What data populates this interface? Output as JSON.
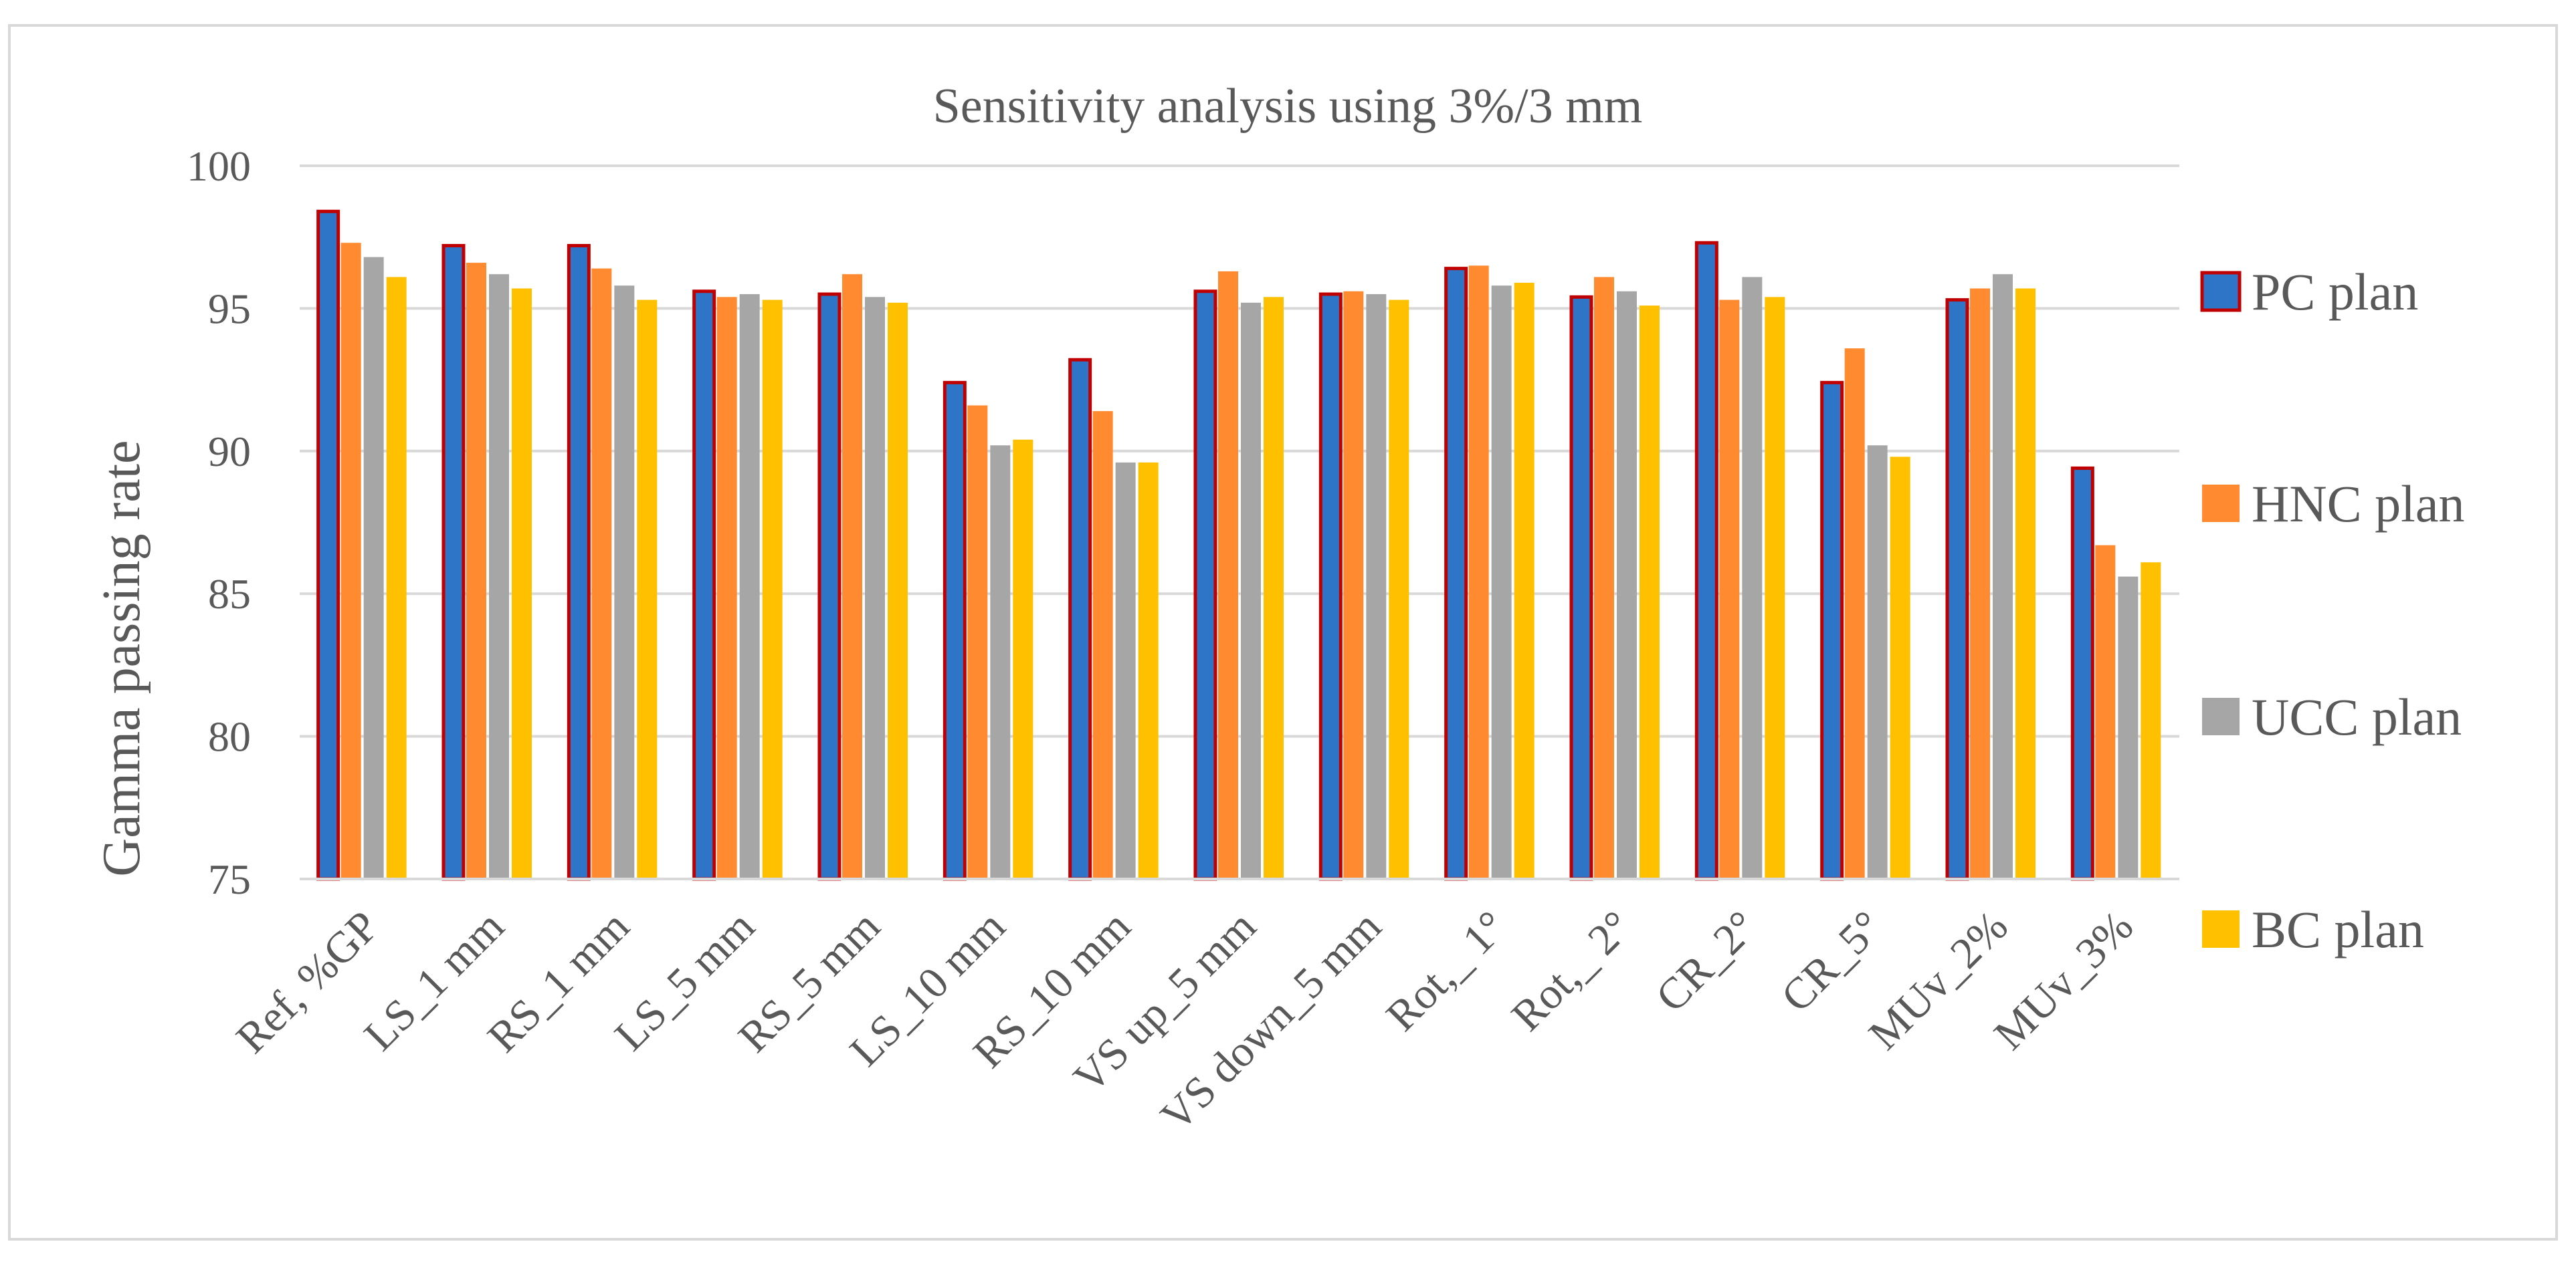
{
  "chart_data": {
    "type": "bar",
    "title": "Sensitivity analysis using 3%/3 mm",
    "xlabel": "",
    "ylabel": "Gamma passing rate",
    "ylim": [
      75,
      100
    ],
    "yticks": [
      75,
      80,
      85,
      90,
      95,
      100
    ],
    "grid": true,
    "legend_position": "right",
    "categories": [
      "Ref, %GP",
      "LS_1 mm",
      "RS_1 mm",
      "LS_5 mm",
      "RS_5 mm",
      "LS_10 mm",
      "RS_10 mm",
      "VS up_5 mm",
      "VS down_5 mm",
      "Rot,_ 1°",
      "Rot,_ 2°",
      "CR_2°",
      "CR_5°",
      "MUv_2%",
      "MUv_3%"
    ],
    "series": [
      {
        "name": "PC plan",
        "color": "#2e75c8",
        "outline": "#c00000",
        "values": [
          98.4,
          97.2,
          97.2,
          95.6,
          95.5,
          92.4,
          93.2,
          95.6,
          95.5,
          96.4,
          95.4,
          97.3,
          92.4,
          95.3,
          89.4
        ]
      },
      {
        "name": "HNC plan",
        "color": "#ff8a2f",
        "values": [
          97.3,
          96.6,
          96.4,
          95.4,
          96.2,
          91.6,
          91.4,
          96.3,
          95.6,
          96.5,
          96.1,
          95.3,
          93.6,
          95.7,
          86.7
        ]
      },
      {
        "name": "UCC plan",
        "color": "#a6a6a6",
        "values": [
          96.8,
          96.2,
          95.8,
          95.5,
          95.4,
          90.2,
          89.6,
          95.2,
          95.5,
          95.8,
          95.6,
          96.1,
          90.2,
          96.2,
          85.6
        ]
      },
      {
        "name": "BC plan",
        "color": "#ffc000",
        "values": [
          96.1,
          95.7,
          95.3,
          95.3,
          95.2,
          90.4,
          89.6,
          95.4,
          95.3,
          95.9,
          95.1,
          95.4,
          89.8,
          95.7,
          86.1
        ]
      }
    ]
  }
}
